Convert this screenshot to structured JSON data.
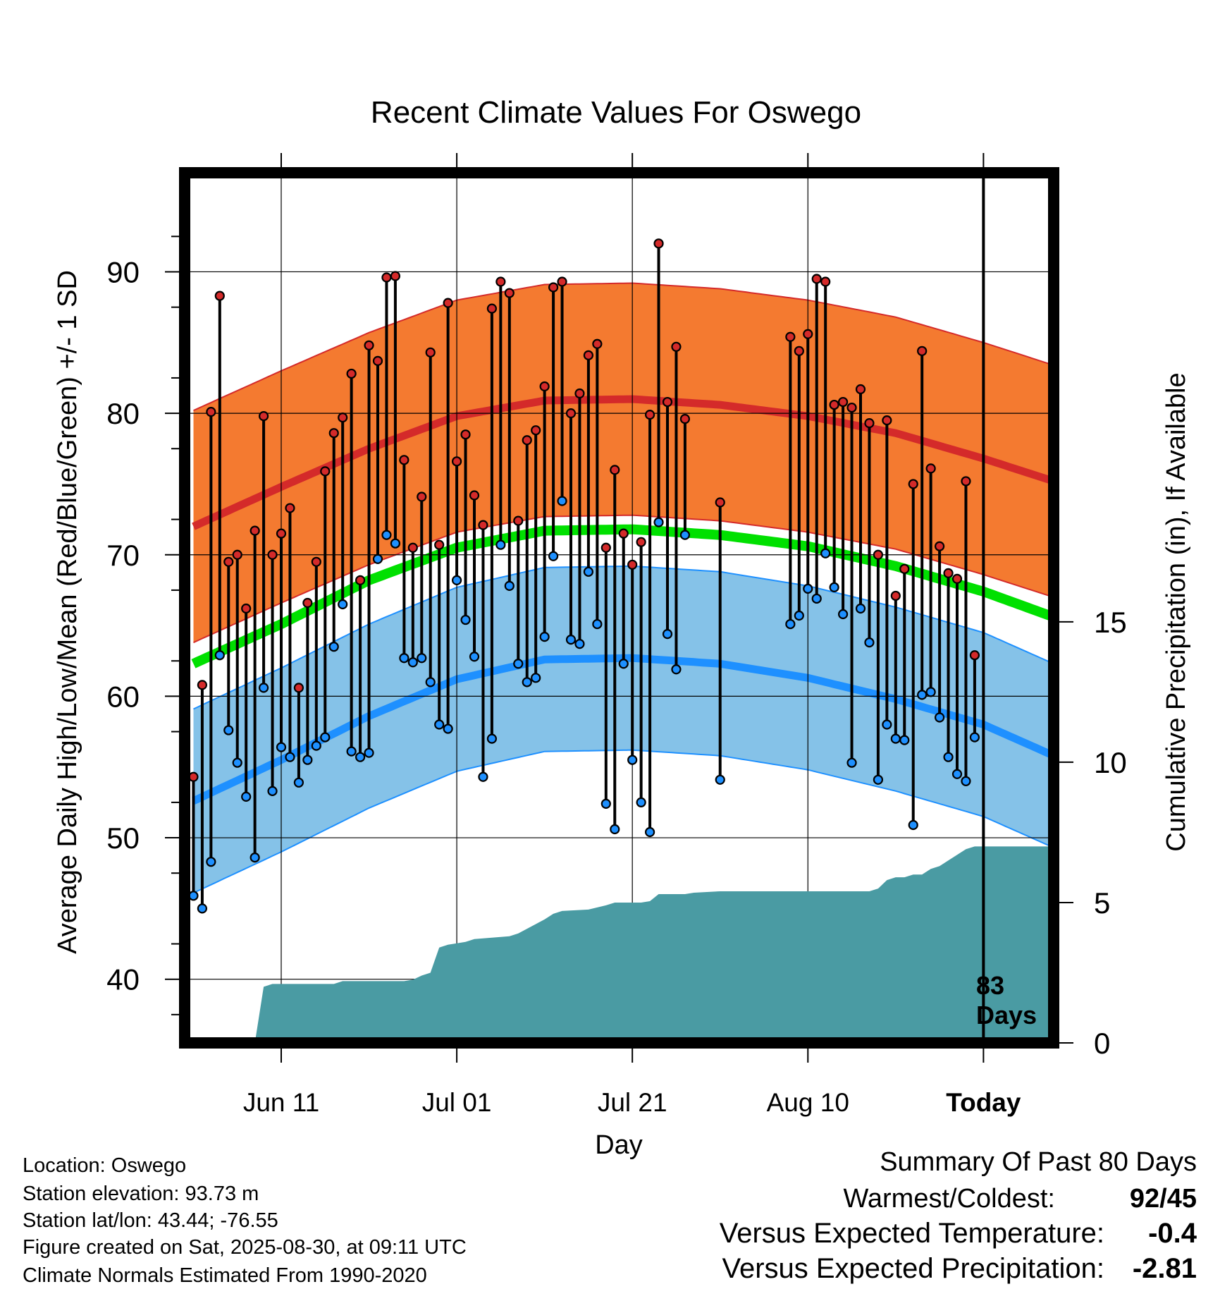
{
  "chart_data": {
    "type": "line",
    "title": "Recent Climate Values For Oswego",
    "xlabel": "Day",
    "ylabel": "Average Daily High/Low/Mean (Red/Blue/Green) +/- 1 SD",
    "y2label": "Cumulative Precipitation (in), If Available",
    "ylim": [
      35.5,
      97
    ],
    "y2lim": [
      0,
      31
    ],
    "xlim": [
      -11,
      88
    ],
    "x_ticks": [
      {
        "day": 0,
        "label": "Jun 11"
      },
      {
        "day": 20,
        "label": "Jul 01"
      },
      {
        "day": 40,
        "label": "Jul 21"
      },
      {
        "day": 60,
        "label": "Aug 10"
      },
      {
        "day": 80,
        "label": "Today"
      }
    ],
    "y_ticks": [
      40,
      50,
      60,
      70,
      80,
      90
    ],
    "y2_ticks": [
      0,
      5,
      10,
      15
    ],
    "today_label": [
      "83",
      "Days"
    ],
    "grid": true,
    "colors": {
      "high": "#d42a2a",
      "high_band": "#f47a30",
      "low": "#1e90ff",
      "low_band": "#85c2e8",
      "mean": "#00e000",
      "precip": "#4a9ba3",
      "frame": "#000000"
    },
    "normals": {
      "x": [
        -10,
        0,
        10,
        20,
        30,
        40,
        50,
        60,
        70,
        80,
        88
      ],
      "high": [
        72.0,
        74.8,
        77.5,
        79.8,
        80.9,
        81.0,
        80.6,
        79.8,
        78.6,
        76.8,
        75.2
      ],
      "high_sd": 8.2,
      "low": [
        52.6,
        55.5,
        58.6,
        61.2,
        62.6,
        62.7,
        62.3,
        61.3,
        59.8,
        58.0,
        55.8
      ],
      "low_sd": 6.5,
      "mean": [
        62.3,
        65.1,
        68.2,
        70.5,
        71.7,
        71.8,
        71.4,
        70.6,
        69.2,
        67.4,
        65.6
      ]
    },
    "series": [
      {
        "name": "High",
        "points": [
          [
            -10,
            54.3
          ],
          [
            -9,
            60.8
          ],
          [
            -8,
            80.1
          ],
          [
            -7,
            88.3
          ],
          [
            -6,
            69.5
          ],
          [
            -5,
            70.0
          ],
          [
            -4,
            66.2
          ],
          [
            -3,
            71.7
          ],
          [
            -2,
            79.8
          ],
          [
            -1,
            70.0
          ],
          [
            0,
            71.5
          ],
          [
            1,
            73.3
          ],
          [
            2,
            60.6
          ],
          [
            3,
            66.6
          ],
          [
            4,
            69.5
          ],
          [
            5,
            75.9
          ],
          [
            6,
            78.6
          ],
          [
            7,
            79.7
          ],
          [
            8,
            82.8
          ],
          [
            9,
            68.2
          ],
          [
            10,
            84.8
          ],
          [
            11,
            83.7
          ],
          [
            12,
            89.6
          ],
          [
            13,
            89.7
          ],
          [
            14,
            76.7
          ],
          [
            15,
            70.5
          ],
          [
            16,
            74.1
          ],
          [
            17,
            84.3
          ],
          [
            18,
            70.7
          ],
          [
            19,
            87.8
          ],
          [
            20,
            76.6
          ],
          [
            21,
            78.5
          ],
          [
            22,
            74.2
          ],
          [
            23,
            72.1
          ],
          [
            24,
            87.4
          ],
          [
            25,
            89.3
          ],
          [
            26,
            88.5
          ],
          [
            27,
            72.4
          ],
          [
            28,
            78.1
          ],
          [
            29,
            78.8
          ],
          [
            30,
            81.9
          ],
          [
            31,
            88.9
          ],
          [
            32,
            89.3
          ],
          [
            33,
            80.0
          ],
          [
            34,
            81.4
          ],
          [
            35,
            84.1
          ],
          [
            36,
            84.9
          ],
          [
            37,
            70.5
          ],
          [
            38,
            76.0
          ],
          [
            39,
            71.5
          ],
          [
            40,
            69.3
          ],
          [
            41,
            70.9
          ],
          [
            42,
            79.9
          ],
          [
            43,
            92.0
          ],
          [
            44,
            80.8
          ],
          [
            45,
            84.7
          ],
          [
            46,
            79.6
          ],
          [
            50,
            73.7
          ],
          [
            58,
            85.4
          ],
          [
            59,
            84.4
          ],
          [
            60,
            85.6
          ],
          [
            61,
            89.5
          ],
          [
            62,
            89.3
          ],
          [
            63,
            80.6
          ],
          [
            64,
            80.8
          ],
          [
            65,
            80.4
          ],
          [
            66,
            81.7
          ],
          [
            67,
            79.3
          ],
          [
            68,
            70.0
          ],
          [
            69,
            79.5
          ],
          [
            70,
            67.1
          ],
          [
            71,
            69.0
          ],
          [
            72,
            75.0
          ],
          [
            73,
            84.4
          ],
          [
            74,
            76.1
          ],
          [
            75,
            70.6
          ],
          [
            76,
            68.7
          ],
          [
            77,
            68.3
          ],
          [
            78,
            75.2
          ],
          [
            79,
            62.9
          ]
        ]
      },
      {
        "name": "Low",
        "points": [
          [
            -10,
            45.9
          ],
          [
            -9,
            45.0
          ],
          [
            -8,
            48.3
          ],
          [
            -7,
            62.9
          ],
          [
            -6,
            57.6
          ],
          [
            -5,
            55.3
          ],
          [
            -4,
            52.9
          ],
          [
            -3,
            48.6
          ],
          [
            -2,
            60.6
          ],
          [
            -1,
            53.3
          ],
          [
            0,
            56.4
          ],
          [
            1,
            55.7
          ],
          [
            2,
            53.9
          ],
          [
            3,
            55.5
          ],
          [
            4,
            56.5
          ],
          [
            5,
            57.1
          ],
          [
            6,
            63.5
          ],
          [
            7,
            66.5
          ],
          [
            8,
            56.1
          ],
          [
            9,
            55.7
          ],
          [
            10,
            56.0
          ],
          [
            11,
            69.7
          ],
          [
            12,
            71.4
          ],
          [
            13,
            70.8
          ],
          [
            14,
            62.7
          ],
          [
            15,
            62.4
          ],
          [
            16,
            62.7
          ],
          [
            17,
            61.0
          ],
          [
            18,
            58.0
          ],
          [
            19,
            57.7
          ],
          [
            20,
            68.2
          ],
          [
            21,
            65.4
          ],
          [
            22,
            62.8
          ],
          [
            23,
            54.3
          ],
          [
            24,
            57.0
          ],
          [
            25,
            70.7
          ],
          [
            26,
            67.8
          ],
          [
            27,
            62.3
          ],
          [
            28,
            61.0
          ],
          [
            29,
            61.3
          ],
          [
            30,
            64.2
          ],
          [
            31,
            69.9
          ],
          [
            32,
            73.8
          ],
          [
            33,
            64.0
          ],
          [
            34,
            63.7
          ],
          [
            35,
            68.8
          ],
          [
            36,
            65.1
          ],
          [
            37,
            52.4
          ],
          [
            38,
            50.6
          ],
          [
            39,
            62.3
          ],
          [
            40,
            55.5
          ],
          [
            41,
            52.5
          ],
          [
            42,
            50.4
          ],
          [
            43,
            72.3
          ],
          [
            44,
            64.4
          ],
          [
            45,
            61.9
          ],
          [
            46,
            71.4
          ],
          [
            50,
            54.1
          ],
          [
            58,
            65.1
          ],
          [
            59,
            65.7
          ],
          [
            60,
            67.6
          ],
          [
            61,
            66.9
          ],
          [
            62,
            70.1
          ],
          [
            63,
            67.7
          ],
          [
            64,
            65.8
          ],
          [
            65,
            55.3
          ],
          [
            66,
            66.2
          ],
          [
            67,
            63.8
          ],
          [
            68,
            54.1
          ],
          [
            69,
            58.0
          ],
          [
            70,
            57.0
          ],
          [
            71,
            56.9
          ],
          [
            72,
            50.9
          ],
          [
            73,
            60.1
          ],
          [
            74,
            60.3
          ],
          [
            75,
            58.5
          ],
          [
            76,
            55.7
          ],
          [
            77,
            54.5
          ],
          [
            78,
            54.0
          ],
          [
            79,
            57.1
          ]
        ]
      }
    ],
    "precip": {
      "x": [
        -10,
        -3,
        -2,
        -1,
        6,
        7,
        14,
        15,
        16,
        17,
        18,
        19,
        20,
        21,
        22,
        26,
        27,
        30,
        31,
        32,
        35,
        37,
        38,
        41,
        42,
        43,
        46,
        47,
        50,
        51,
        60,
        61,
        67,
        68,
        69,
        70,
        71,
        72,
        73,
        74,
        75,
        76,
        77,
        78,
        79,
        80,
        88
      ],
      "y": [
        0,
        0,
        2.0,
        2.1,
        2.1,
        2.2,
        2.2,
        2.25,
        2.4,
        2.5,
        3.4,
        3.5,
        3.55,
        3.6,
        3.7,
        3.8,
        3.9,
        4.4,
        4.6,
        4.7,
        4.75,
        4.9,
        5.0,
        5.0,
        5.05,
        5.3,
        5.3,
        5.35,
        5.4,
        5.4,
        5.4,
        5.4,
        5.4,
        5.5,
        5.8,
        5.9,
        5.9,
        6.0,
        6.0,
        6.2,
        6.3,
        6.5,
        6.7,
        6.9,
        7.0,
        7.0,
        7.0
      ]
    }
  },
  "footer_left": {
    "location": "Location: Oswego",
    "elevation": "Station elevation: 93.73 m",
    "latlon": "Station lat/lon: 43.44; -76.55",
    "created": "Figure created on Sat, 2025-08-30, at 09:11 UTC",
    "normals": "Climate Normals Estimated From 1990-2020"
  },
  "summary": {
    "title": "Summary Of Past 80 Days",
    "warmest_coldest_label": "Warmest/Coldest:",
    "warmest": "92",
    "slash": "/",
    "coldest": "45",
    "temp_label": "Versus Expected Temperature:",
    "temp_value": "-0.4",
    "temp_color": "#1e90ff",
    "precip_label": "Versus Expected Precipitation:",
    "precip_value": "-2.81",
    "precip_color": "#a0522d"
  }
}
